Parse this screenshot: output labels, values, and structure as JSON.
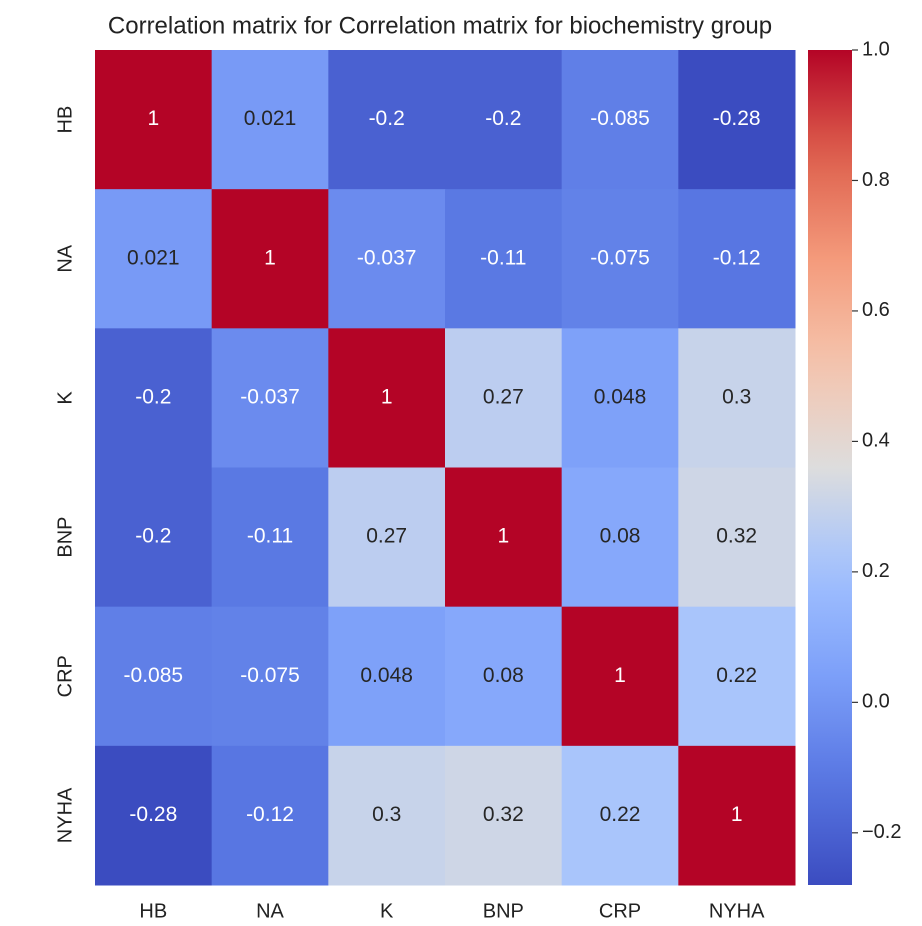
{
  "chart_data": {
    "type": "heatmap",
    "title": "Correlation matrix for Correlation matrix for biochemistry group",
    "categories": [
      "HB",
      "NA",
      "K",
      "BNP",
      "CRP",
      "NYHA"
    ],
    "values": [
      [
        1,
        0.021,
        -0.2,
        -0.2,
        -0.085,
        -0.28
      ],
      [
        0.021,
        1,
        -0.037,
        -0.11,
        -0.075,
        -0.12
      ],
      [
        -0.2,
        -0.037,
        1,
        0.27,
        0.048,
        0.3
      ],
      [
        -0.2,
        -0.11,
        0.27,
        1,
        0.08,
        0.32
      ],
      [
        -0.085,
        -0.075,
        0.048,
        0.08,
        1,
        0.22
      ],
      [
        -0.28,
        -0.12,
        0.3,
        0.32,
        0.22,
        1
      ]
    ],
    "colormap": "coolwarm",
    "zlim": [
      -0.28,
      1
    ],
    "zticks": [
      {
        "value": 1.0,
        "label": "1.0"
      },
      {
        "value": 0.8,
        "label": "0.8"
      },
      {
        "value": 0.6,
        "label": "0.6"
      },
      {
        "value": 0.4,
        "label": "0.4"
      },
      {
        "value": 0.2,
        "label": "0.2"
      },
      {
        "value": 0.0,
        "label": "0.0"
      },
      {
        "value": -0.2,
        "label": "−0.2"
      }
    ]
  }
}
